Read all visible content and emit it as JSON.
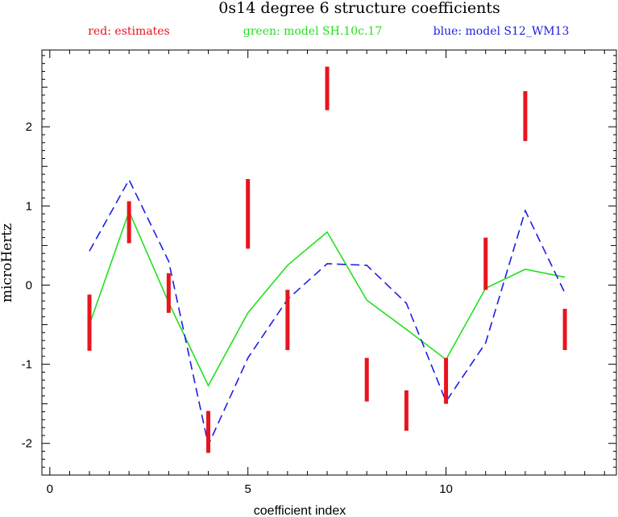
{
  "chart_data": {
    "type": "line",
    "title": "0s14 degree 6 structure coefficients",
    "xlabel": "coefficient index",
    "ylabel": "microHertz",
    "xlim": [
      -0.2,
      14.3
    ],
    "ylim": [
      -2.4,
      2.97
    ],
    "x_ticks": [
      0,
      5,
      10
    ],
    "y_ticks": [
      -2,
      -1,
      0,
      1,
      2
    ],
    "legend": [
      {
        "text": "red: estimates",
        "color": "#e8141e"
      },
      {
        "text": "green: model SH.10c.17",
        "color": "#22e01e"
      },
      {
        "text": "blue: model S12_WM13",
        "color": "#1e1ee6"
      }
    ],
    "x": [
      1,
      2,
      3,
      4,
      5,
      6,
      7,
      8,
      9,
      10,
      11,
      12,
      13
    ],
    "estimates": {
      "color": "#e8141e",
      "low": [
        -0.83,
        0.53,
        -0.35,
        -2.12,
        0.46,
        -0.82,
        2.21,
        -1.47,
        -1.84,
        -1.5,
        -0.06,
        1.82,
        -0.82
      ],
      "high": [
        -0.12,
        1.06,
        0.15,
        -1.59,
        1.34,
        -0.06,
        2.76,
        -0.92,
        -1.33,
        -0.92,
        0.6,
        2.45,
        -0.3
      ]
    },
    "series": [
      {
        "name": "model SH.10c.17",
        "color": "#22e01e",
        "style": "solid",
        "values": [
          -0.5,
          0.93,
          -0.22,
          -1.27,
          -0.35,
          0.25,
          0.67,
          -0.19,
          -0.56,
          -0.94,
          -0.04,
          0.2,
          0.1
        ]
      },
      {
        "name": "model S12_WM13",
        "color": "#1e1ee6",
        "style": "dashed",
        "values": [
          0.43,
          1.33,
          0.3,
          -2.02,
          -0.92,
          -0.18,
          0.27,
          0.25,
          -0.23,
          -1.47,
          -0.73,
          0.94,
          -0.1
        ]
      }
    ],
    "grid": false
  }
}
